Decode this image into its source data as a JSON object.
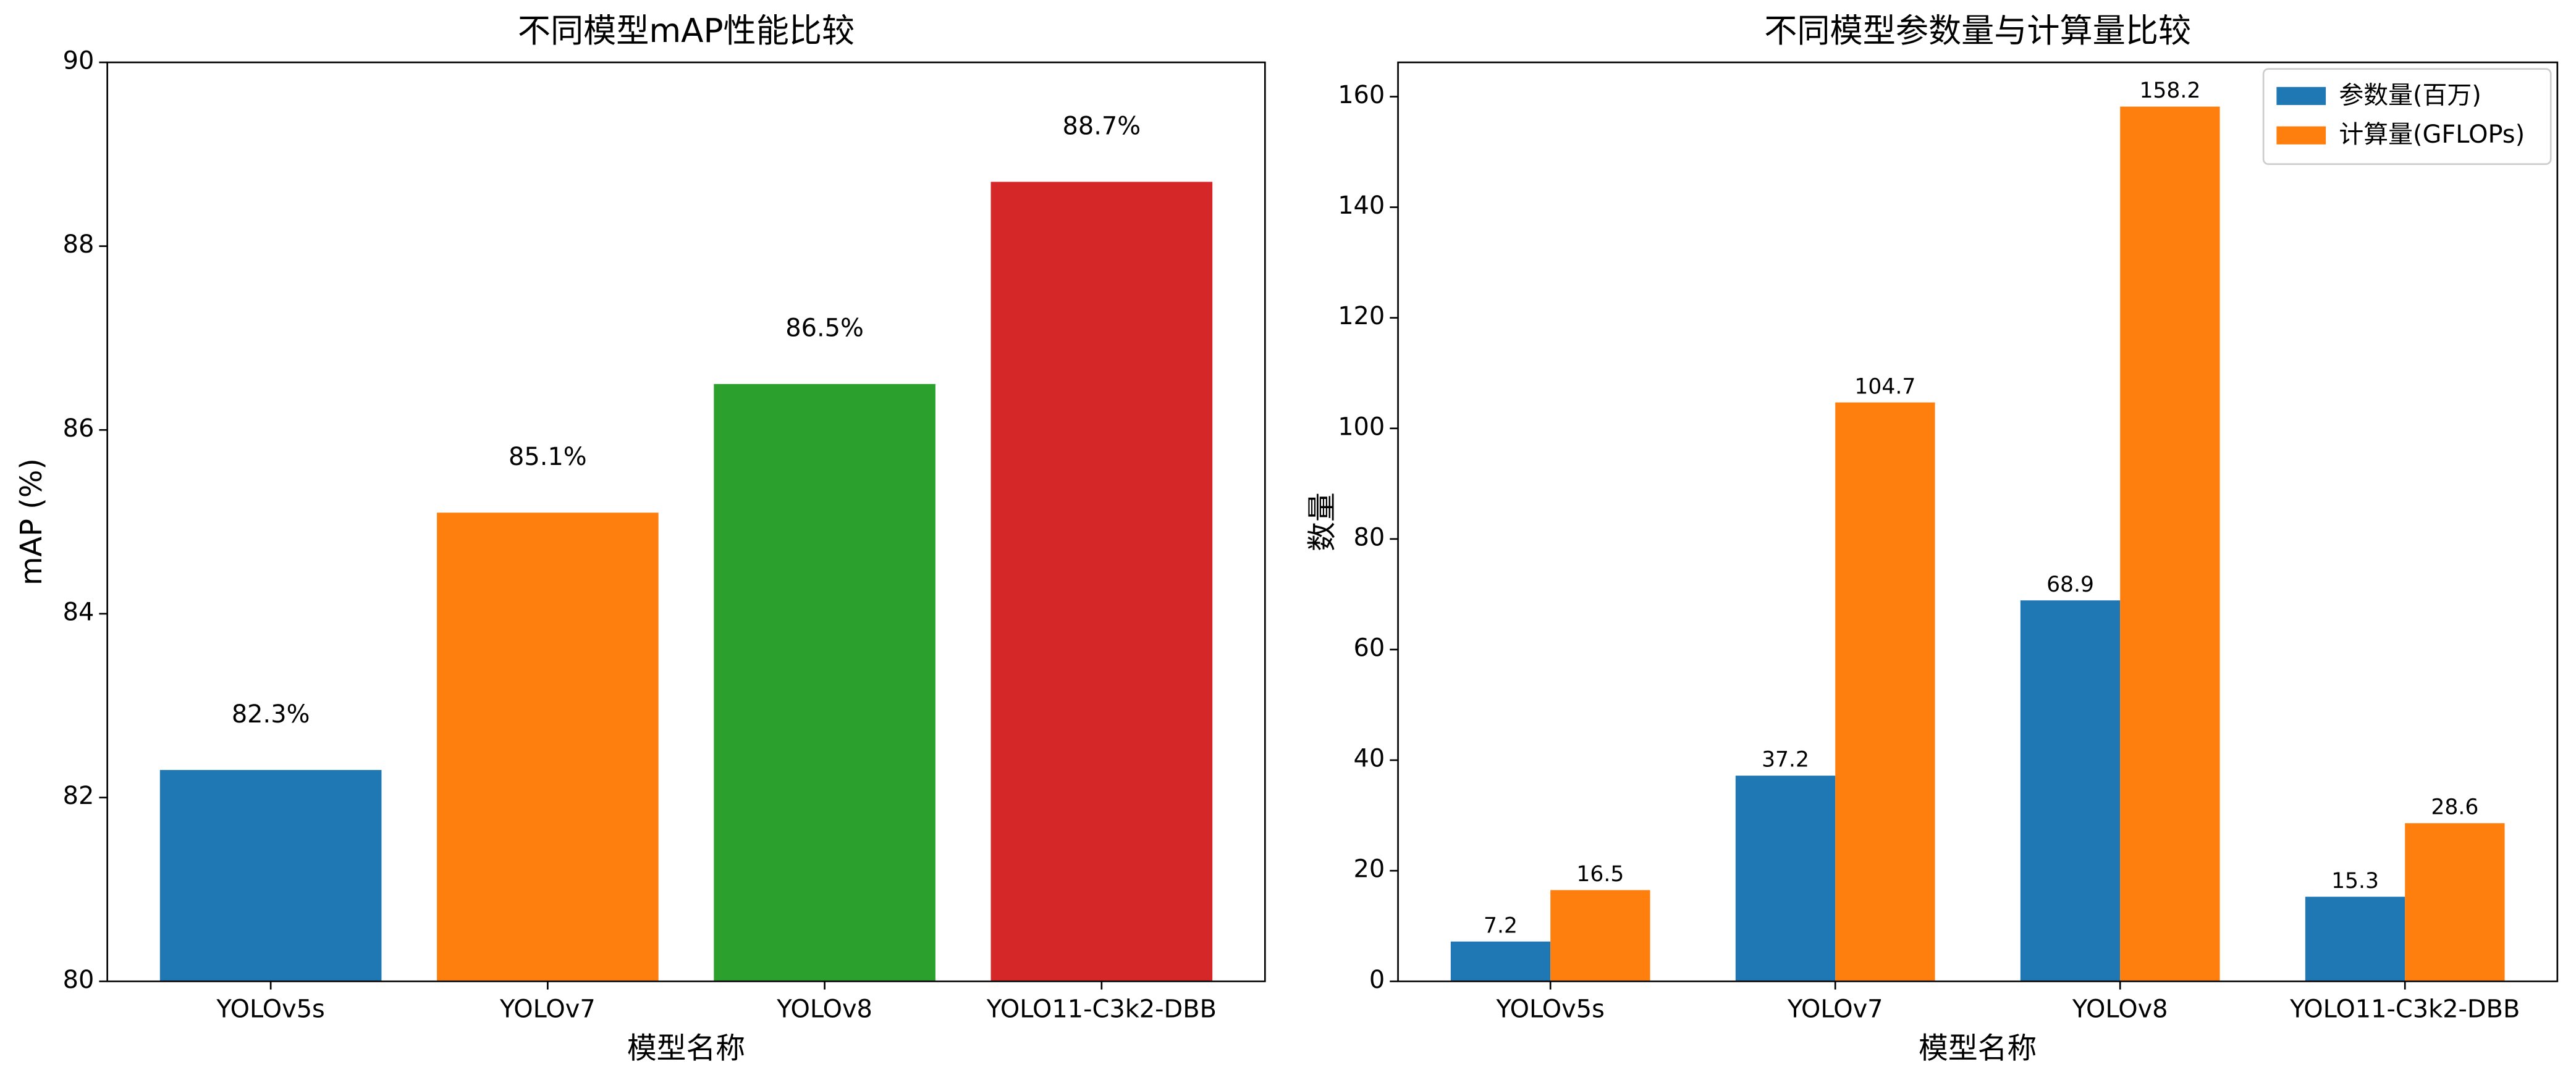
{
  "chart_data": [
    {
      "type": "bar",
      "title": "不同模型mAP性能比较",
      "xlabel": "模型名称",
      "ylabel": "mAP (%)",
      "categories": [
        "YOLOv5s",
        "YOLOv7",
        "YOLOv8",
        "YOLO11-C3k2-DBB"
      ],
      "values": [
        82.3,
        85.1,
        86.5,
        88.7
      ],
      "value_labels": [
        "82.3%",
        "85.1%",
        "86.5%",
        "88.7%"
      ],
      "colors": [
        "#1f77b4",
        "#ff7f0e",
        "#2ca02c",
        "#d62728"
      ],
      "ylim": [
        80,
        90
      ],
      "yticks": [
        80,
        82,
        84,
        86,
        88,
        90
      ]
    },
    {
      "type": "grouped_bar",
      "title": "不同模型参数量与计算量比较",
      "xlabel": "模型名称",
      "ylabel": "数量",
      "categories": [
        "YOLOv5s",
        "YOLOv7",
        "YOLOv8",
        "YOLO11-C3k2-DBB"
      ],
      "series": [
        {
          "name": "参数量(百万)",
          "color": "#1f77b4",
          "values": [
            7.2,
            37.2,
            68.9,
            15.3
          ]
        },
        {
          "name": "计算量(GFLOPs)",
          "color": "#ff7f0e",
          "values": [
            16.5,
            104.7,
            158.2,
            28.6
          ]
        }
      ],
      "ylim": [
        0,
        166.2
      ],
      "yticks": [
        0,
        20,
        40,
        60,
        80,
        100,
        120,
        140,
        160
      ],
      "legend": "upper right"
    }
  ]
}
